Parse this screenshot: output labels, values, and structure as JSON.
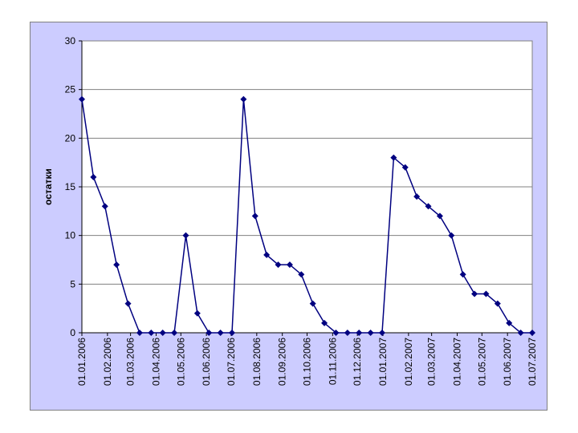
{
  "chart_data": {
    "type": "line",
    "title": "",
    "xlabel": "",
    "ylabel": "остатки",
    "ylim": [
      0,
      30
    ],
    "yticks": [
      0,
      5,
      10,
      15,
      20,
      25,
      30
    ],
    "xlim": [
      "2006-01-01",
      "2007-07-01"
    ],
    "xtick_labels": [
      "01.01.2006",
      "01.02.2006",
      "01.03.2006",
      "01.04.2006",
      "01.05.2006",
      "01.06.2006",
      "01.07.2006",
      "01.08.2006",
      "01.09.2006",
      "01.10.2006",
      "01.11.2006",
      "01.12.2006",
      "01.01.2007",
      "01.02.2007",
      "01.03.2007",
      "01.04.2007",
      "01.05.2007",
      "01.06.2007",
      "01.07.2007"
    ],
    "grid": "horizontal",
    "colors": {
      "series": "#000080",
      "plot_background": "#ffffff",
      "chart_background": "#ccccff",
      "gridline": "#808080"
    },
    "series": [
      {
        "points": [
          [
            "2006-01-01",
            24
          ],
          [
            "2006-01-15",
            16
          ],
          [
            "2006-01-29",
            13
          ],
          [
            "2006-02-12",
            7
          ],
          [
            "2006-02-26",
            3
          ],
          [
            "2006-03-12",
            0
          ],
          [
            "2006-03-26",
            0
          ],
          [
            "2006-04-09",
            0
          ],
          [
            "2006-04-23",
            0
          ],
          [
            "2006-05-07",
            10
          ],
          [
            "2006-05-21",
            2
          ],
          [
            "2006-06-04",
            0
          ],
          [
            "2006-06-18",
            0
          ],
          [
            "2006-07-02",
            0
          ],
          [
            "2006-07-16",
            24
          ],
          [
            "2006-07-30",
            12
          ],
          [
            "2006-08-13",
            8
          ],
          [
            "2006-08-27",
            7
          ],
          [
            "2006-09-10",
            7
          ],
          [
            "2006-09-24",
            6
          ],
          [
            "2006-10-08",
            3
          ],
          [
            "2006-10-22",
            1
          ],
          [
            "2006-11-05",
            0
          ],
          [
            "2006-11-19",
            0
          ],
          [
            "2006-12-03",
            0
          ],
          [
            "2006-12-17",
            0
          ],
          [
            "2006-12-31",
            0
          ],
          [
            "2007-01-14",
            18
          ],
          [
            "2007-01-28",
            17
          ],
          [
            "2007-02-11",
            14
          ],
          [
            "2007-02-25",
            13
          ],
          [
            "2007-03-11",
            12
          ],
          [
            "2007-03-25",
            10
          ],
          [
            "2007-04-08",
            6
          ],
          [
            "2007-04-22",
            4
          ],
          [
            "2007-05-06",
            4
          ],
          [
            "2007-05-20",
            3
          ],
          [
            "2007-06-03",
            1
          ],
          [
            "2007-06-17",
            0
          ],
          [
            "2007-07-01",
            0
          ]
        ]
      }
    ]
  }
}
